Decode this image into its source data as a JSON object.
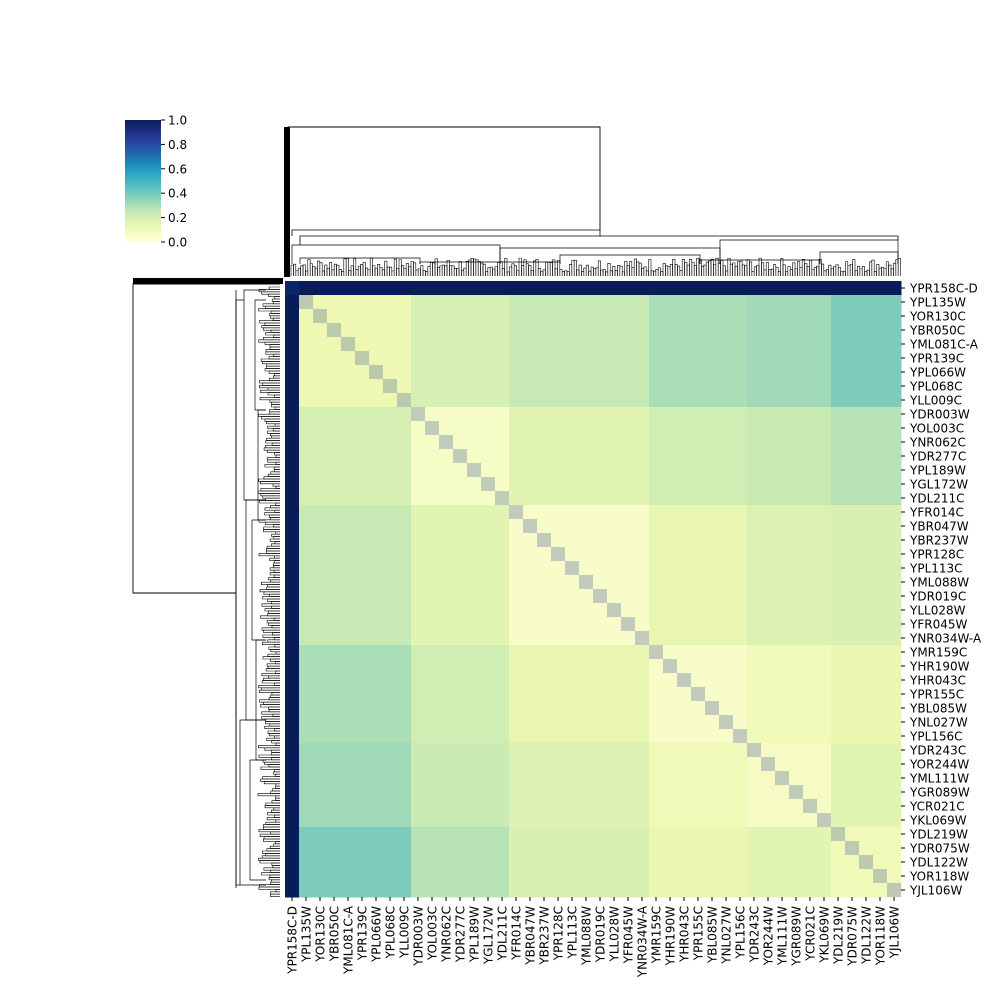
{
  "chart_data": {
    "type": "heatmap",
    "subtype": "clustermap",
    "colormap": "YlGnBu",
    "value_range": [
      0.0,
      1.0
    ],
    "colorbar": {
      "ticks": [
        0.0,
        0.2,
        0.4,
        0.6,
        0.8,
        1.0
      ],
      "tick_labels": [
        "0.0",
        "0.2",
        "0.4",
        "0.6",
        "0.8",
        "1.0"
      ]
    },
    "row_labels": [
      "YPR158C-D",
      "YPL135W",
      "YOR130C",
      "YBR050C",
      "YML081C-A",
      "YPR139C",
      "YPL066W",
      "YPL068C",
      "YLL009C",
      "YDR003W",
      "YOL003C",
      "YNR062C",
      "YDR277C",
      "YPL189W",
      "YGL172W",
      "YDL211C",
      "YFR014C",
      "YBR047W",
      "YBR237W",
      "YPR128C",
      "YPL113C",
      "YML088W",
      "YDR019C",
      "YLL028W",
      "YFR045W",
      "YNR034W-A",
      "YMR159C",
      "YHR190W",
      "YHR043C",
      "YPR155C",
      "YBL085W",
      "YNL027W",
      "YPL156C",
      "YDR243C",
      "YOR244W",
      "YML111W",
      "YGR089W",
      "YCR021C",
      "YKL069W",
      "YDL219W",
      "YDR075W",
      "YDL122W",
      "YOR118W",
      "YJL106W"
    ],
    "col_labels": [
      "YPR158C-D",
      "YPL135W",
      "YOR130C",
      "YBR050C",
      "YML081C-A",
      "YPR139C",
      "YPL066W",
      "YPL068C",
      "YLL009C",
      "YDR003W",
      "YOL003C",
      "YNR062C",
      "YDR277C",
      "YPL189W",
      "YGL172W",
      "YDL211C",
      "YFR014C",
      "YBR047W",
      "YBR237W",
      "YPR128C",
      "YPL113C",
      "YML088W",
      "YDR019C",
      "YLL028W",
      "YFR045W",
      "YNR034W-A",
      "YMR159C",
      "YHR190W",
      "YHR043C",
      "YPR155C",
      "YBL085W",
      "YNL027W",
      "YPL156C",
      "YDR243C",
      "YOR244W",
      "YML111W",
      "YGR089W",
      "YCR021C",
      "YKL069W",
      "YDL219W",
      "YDR075W",
      "YDL122W",
      "YOR118W",
      "YJL106W"
    ],
    "cluster_block_boundaries": [
      0,
      1,
      9,
      16,
      26,
      33,
      39,
      44
    ],
    "block_mean_values": [
      [
        1.0,
        1.0,
        1.0,
        1.0,
        1.0,
        1.0,
        1.0
      ],
      [
        1.0,
        0.12,
        0.2,
        0.25,
        0.3,
        0.32,
        0.38
      ],
      [
        1.0,
        0.2,
        0.06,
        0.16,
        0.22,
        0.24,
        0.28
      ],
      [
        1.0,
        0.25,
        0.16,
        0.05,
        0.14,
        0.18,
        0.19
      ],
      [
        1.0,
        0.3,
        0.22,
        0.14,
        0.05,
        0.1,
        0.13
      ],
      [
        1.0,
        0.32,
        0.24,
        0.18,
        0.1,
        0.07,
        0.16
      ],
      [
        1.0,
        0.38,
        0.28,
        0.19,
        0.13,
        0.16,
        0.1
      ]
    ]
  }
}
